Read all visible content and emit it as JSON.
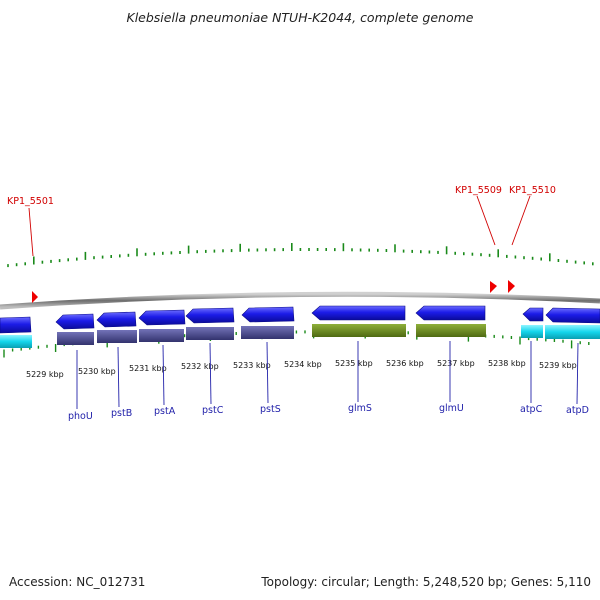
{
  "title": "Klebsiella pneumoniae NTUH-K2044, complete genome",
  "footer": {
    "accession": "Accession: NC_012731",
    "summary": "Topology: circular; Length: 5,248,520 bp; Genes: 5,110"
  },
  "colors": {
    "backbone": "#7a7a7a",
    "forward_gene": "#1f1fe6",
    "cds_dark": "#4a4a9a",
    "cds_olive": "#6b8a1f",
    "cds_cyan": "#18d8ee",
    "tick_green": "#1a8a1a",
    "feature_red": "#ee0000",
    "label_blue": "#2222aa",
    "label_red": "#d10000"
  },
  "scale_labels": [
    "5229 kbp",
    "5230 kbp",
    "5231 kbp",
    "5232 kbp",
    "5233 kbp",
    "5234 kbp",
    "5235 kbp",
    "5236 kbp",
    "5237 kbp",
    "5238 kbp",
    "5239 kbp"
  ],
  "genes": [
    "phoU",
    "pstB",
    "pstA",
    "pstC",
    "pstS",
    "glmS",
    "glmU",
    "atpC",
    "atpD"
  ],
  "red_features": [
    "KP1_5501",
    "KP1_5509",
    "KP1_5510"
  ]
}
